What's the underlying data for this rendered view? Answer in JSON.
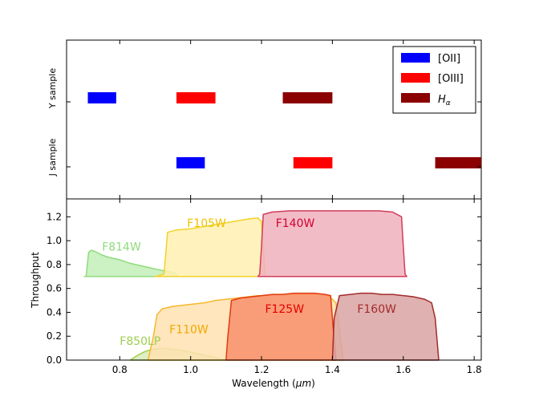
{
  "chart_data": [
    {
      "type": "range",
      "panel": "top",
      "xlim": [
        0.65,
        1.82
      ],
      "rows": [
        {
          "label": "Y sample",
          "ranges": [
            {
              "line": "OII",
              "start": 0.71,
              "end": 0.79
            },
            {
              "line": "OIII",
              "start": 0.96,
              "end": 1.07
            },
            {
              "line": "Halpha",
              "start": 1.26,
              "end": 1.4
            }
          ]
        },
        {
          "label": "J sample",
          "ranges": [
            {
              "line": "OII",
              "start": 0.96,
              "end": 1.04
            },
            {
              "line": "OIII",
              "start": 1.29,
              "end": 1.4
            },
            {
              "line": "Halpha",
              "start": 1.69,
              "end": 1.82
            }
          ]
        }
      ],
      "legend": {
        "placement": "top-right",
        "entries": [
          {
            "key": "OII",
            "label": "[OII]",
            "color": "#0000ff"
          },
          {
            "key": "OIII",
            "label": "[OIII]",
            "color": "#ff0000"
          },
          {
            "key": "Halpha",
            "label_base": "H",
            "label_sub": "α",
            "color": "#8b0000"
          }
        ]
      }
    },
    {
      "type": "area",
      "panel": "bottom",
      "xlabel_main": "Wavelength (",
      "xlabel_unit": "μm",
      "xlabel_end": ")",
      "ylabel": "Throughput",
      "xlim": [
        0.65,
        1.82
      ],
      "ylim": [
        0.0,
        1.35
      ],
      "xticks": [
        "0.8",
        "1.0",
        "1.2",
        "1.4",
        "1.6",
        "1.8"
      ],
      "xtick_values": [
        0.8,
        1.0,
        1.2,
        1.4,
        1.6,
        1.8
      ],
      "yticks": [
        "0.0",
        "0.2",
        "0.4",
        "0.6",
        "0.8",
        "1.0",
        "1.2"
      ],
      "ytick_values": [
        0.0,
        0.2,
        0.4,
        0.6,
        0.8,
        1.0,
        1.2
      ],
      "series": [
        {
          "name": "F814W",
          "fill": "#c3efb8",
          "stroke": "#8fdc7c",
          "label_color": "#8fdc7c",
          "label_x": 0.75,
          "label_y": 0.95,
          "points": [
            [
              0.7,
              0.7
            ],
            [
              0.705,
              0.7
            ],
            [
              0.712,
              0.9
            ],
            [
              0.72,
              0.92
            ],
            [
              0.73,
              0.91
            ],
            [
              0.75,
              0.88
            ],
            [
              0.77,
              0.86
            ],
            [
              0.8,
              0.84
            ],
            [
              0.83,
              0.81
            ],
            [
              0.86,
              0.79
            ],
            [
              0.89,
              0.77
            ],
            [
              0.92,
              0.75
            ],
            [
              0.94,
              0.74
            ],
            [
              0.955,
              0.73
            ],
            [
              0.965,
              0.7
            ]
          ]
        },
        {
          "name": "F850LP",
          "fill": "#d8ecb8",
          "stroke": "#9ecf4f",
          "label_color": "#9ecf4f",
          "label_x": 0.8,
          "label_y": 0.16,
          "points": [
            [
              0.83,
              0.0
            ],
            [
              0.85,
              0.04
            ],
            [
              0.87,
              0.07
            ],
            [
              0.89,
              0.09
            ],
            [
              0.92,
              0.1
            ],
            [
              0.95,
              0.09
            ],
            [
              0.98,
              0.08
            ],
            [
              1.01,
              0.06
            ],
            [
              1.04,
              0.04
            ],
            [
              1.07,
              0.02
            ],
            [
              1.1,
              0.0
            ]
          ]
        },
        {
          "name": "F110W",
          "fill": "#ffe2b0",
          "stroke": "#f5b82e",
          "label_color": "#f0a800",
          "label_x": 0.94,
          "label_y": 0.26,
          "points": [
            [
              0.88,
              0.0
            ],
            [
              0.895,
              0.2
            ],
            [
              0.905,
              0.38
            ],
            [
              0.92,
              0.43
            ],
            [
              0.95,
              0.45
            ],
            [
              0.98,
              0.46
            ],
            [
              1.01,
              0.47
            ],
            [
              1.04,
              0.48
            ],
            [
              1.07,
              0.5
            ],
            [
              1.1,
              0.51
            ],
            [
              1.13,
              0.52
            ],
            [
              1.16,
              0.53
            ],
            [
              1.19,
              0.54
            ],
            [
              1.22,
              0.54
            ],
            [
              1.25,
              0.55
            ],
            [
              1.28,
              0.55
            ],
            [
              1.31,
              0.55
            ],
            [
              1.34,
              0.55
            ],
            [
              1.37,
              0.55
            ],
            [
              1.39,
              0.54
            ],
            [
              1.41,
              0.48
            ],
            [
              1.42,
              0.25
            ],
            [
              1.43,
              0.0
            ]
          ]
        },
        {
          "name": "F105W",
          "fill": "#fff0b0",
          "stroke": "#f2d22a",
          "label_color": "#f0c000",
          "label_x": 0.99,
          "label_y": 1.15,
          "points": [
            [
              0.9,
              0.7
            ],
            [
              0.925,
              0.72
            ],
            [
              0.935,
              1.07
            ],
            [
              0.96,
              1.09
            ],
            [
              1.0,
              1.1
            ],
            [
              1.04,
              1.12
            ],
            [
              1.08,
              1.14
            ],
            [
              1.12,
              1.16
            ],
            [
              1.16,
              1.18
            ],
            [
              1.19,
              1.19
            ],
            [
              1.2,
              1.16
            ],
            [
              1.205,
              0.95
            ],
            [
              1.21,
              0.7
            ]
          ]
        },
        {
          "name": "F140W",
          "fill": "#f0b0bc",
          "stroke": "#d23c5a",
          "label_color": "#d40030",
          "label_x": 1.24,
          "label_y": 1.15,
          "points": [
            [
              1.19,
              0.7
            ],
            [
              1.195,
              0.72
            ],
            [
              1.2,
              0.95
            ],
            [
              1.205,
              1.22
            ],
            [
              1.23,
              1.24
            ],
            [
              1.28,
              1.25
            ],
            [
              1.33,
              1.25
            ],
            [
              1.38,
              1.25
            ],
            [
              1.43,
              1.25
            ],
            [
              1.48,
              1.25
            ],
            [
              1.53,
              1.25
            ],
            [
              1.57,
              1.24
            ],
            [
              1.595,
              1.2
            ],
            [
              1.6,
              0.95
            ],
            [
              1.605,
              0.72
            ],
            [
              1.61,
              0.7
            ]
          ]
        },
        {
          "name": "F125W",
          "fill": "#f88f6c",
          "stroke": "#e23a10",
          "label_color": "#e60000",
          "label_x": 1.21,
          "label_y": 0.43,
          "points": [
            [
              1.1,
              0.0
            ],
            [
              1.105,
              0.2
            ],
            [
              1.115,
              0.5
            ],
            [
              1.14,
              0.52
            ],
            [
              1.17,
              0.53
            ],
            [
              1.2,
              0.54
            ],
            [
              1.23,
              0.55
            ],
            [
              1.26,
              0.55
            ],
            [
              1.29,
              0.56
            ],
            [
              1.32,
              0.56
            ],
            [
              1.35,
              0.56
            ],
            [
              1.38,
              0.55
            ],
            [
              1.395,
              0.54
            ],
            [
              1.4,
              0.35
            ],
            [
              1.41,
              0.0
            ]
          ]
        },
        {
          "name": "F160W",
          "fill": "#d9a3a3",
          "stroke": "#a52a2a",
          "label_color": "#a52a2a",
          "label_x": 1.47,
          "label_y": 0.43,
          "points": [
            [
              1.4,
              0.0
            ],
            [
              1.405,
              0.35
            ],
            [
              1.42,
              0.54
            ],
            [
              1.45,
              0.55
            ],
            [
              1.48,
              0.56
            ],
            [
              1.51,
              0.56
            ],
            [
              1.54,
              0.55
            ],
            [
              1.57,
              0.55
            ],
            [
              1.6,
              0.54
            ],
            [
              1.63,
              0.53
            ],
            [
              1.66,
              0.51
            ],
            [
              1.68,
              0.48
            ],
            [
              1.69,
              0.35
            ],
            [
              1.7,
              0.0
            ]
          ]
        }
      ]
    }
  ]
}
